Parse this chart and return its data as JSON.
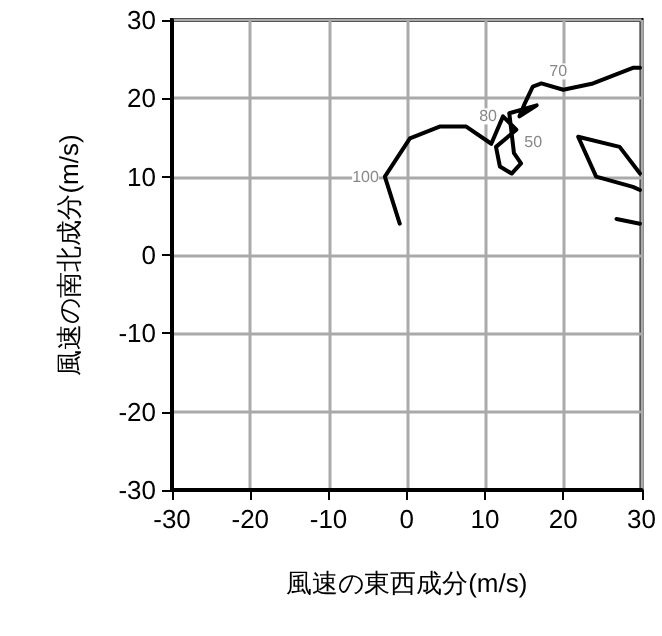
{
  "chart_data": {
    "type": "line",
    "xlabel": "風速の東西成分(m/s)",
    "ylabel": "風速の南北成分(m/s)",
    "xlim": [
      -30,
      30
    ],
    "xticks": [
      -30,
      -20,
      -10,
      0,
      10,
      20,
      30
    ],
    "ylim": [
      -30,
      30
    ],
    "yticks": [
      -30,
      -20,
      -10,
      0,
      10,
      20,
      30
    ],
    "grid": true,
    "marker": "none",
    "line_style": "solid",
    "series": [
      {
        "color": "#000000",
        "x": [
          -0.9,
          -2.8,
          0.4,
          4.2,
          7.6,
          10.8,
          12.3,
          14.0,
          11.4,
          11.9,
          13.4,
          14.6,
          13.7,
          13.1,
          16.6,
          14.4,
          15.1,
          16.1,
          17.2,
          20.0,
          23.8,
          28.9,
          29.8
        ],
        "values": [
          4.0,
          10.0,
          14.9,
          16.4,
          16.4,
          14.2,
          17.7,
          16.0,
          13.8,
          11.3,
          10.4,
          11.7,
          13.0,
          18.1,
          19.1,
          17.7,
          19.4,
          21.5,
          21.9,
          21.1,
          21.9,
          23.9,
          23.9
        ]
      },
      {
        "color": "#000000",
        "x": [
          29.8,
          27.2,
          21.9,
          24.2,
          28.9,
          29.8
        ],
        "values": [
          10.4,
          13.8,
          15.1,
          10.0,
          8.7,
          8.3
        ]
      },
      {
        "color": "#000000",
        "x": [
          26.8,
          29.8
        ],
        "values": [
          4.6,
          4.0
        ]
      }
    ],
    "annotations": [
      {
        "text": "100",
        "x": -2.8,
        "y": 10.0
      },
      {
        "text": "80",
        "x": 12.3,
        "y": 17.7
      },
      {
        "text": "70",
        "x": 17.2,
        "y": 21.9
      },
      {
        "text": "50",
        "x": 14.0,
        "y": 16.0
      }
    ]
  }
}
